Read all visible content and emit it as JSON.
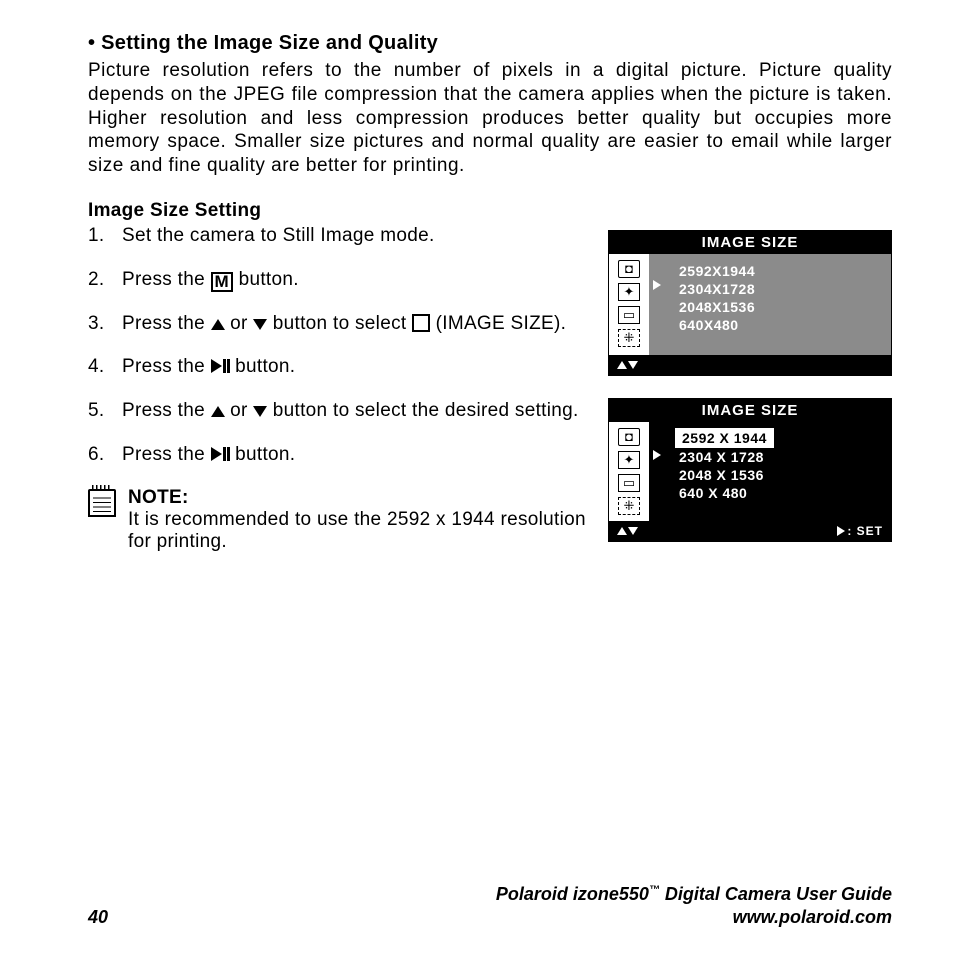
{
  "heading": "• Setting the Image Size and Quality",
  "intro": "Picture resolution refers to the number of pixels in a digital picture. Picture quality depends on the JPEG file compression that the camera applies when the picture is taken. Higher resolution and less compression produces better quality but occupies more memory space. Smaller size pictures and normal quality are easier to email while larger size and fine quality are better for printing.",
  "sub": "Image Size Setting",
  "steps": {
    "s1": "Set the camera to Still Image mode.",
    "s2a": "Press the ",
    "s2b": " button.",
    "s3a": "Press the ",
    "s3b": " or ",
    "s3c": " button to select ",
    "s3d": " (IMAGE SIZE).",
    "s4a": "Press the ",
    "s4b": " button.",
    "s5a": "Press the ",
    "s5b": " or ",
    "s5c": " button to select the desired setting.",
    "s6a": "Press the ",
    "s6b": " button."
  },
  "note": {
    "label": "NOTE:",
    "text": "It is recommended to use the 2592 x 1944 resolution for printing."
  },
  "lcd1": {
    "title": "IMAGE SIZE",
    "opts": [
      "2592X1944",
      "2304X1728",
      "2048X1536",
      "640X480"
    ]
  },
  "lcd2": {
    "title": "IMAGE SIZE",
    "sel": "2592 X 1944",
    "opts": [
      "2304 X 1728",
      "2048 X 1536",
      "640 X 480"
    ],
    "set": ": SET"
  },
  "footer": {
    "page": "40",
    "guide1a": "Polaroid izone550",
    "guide1b": " Digital Camera User Guide",
    "tm": "™",
    "guide2": "www.polaroid.com"
  }
}
